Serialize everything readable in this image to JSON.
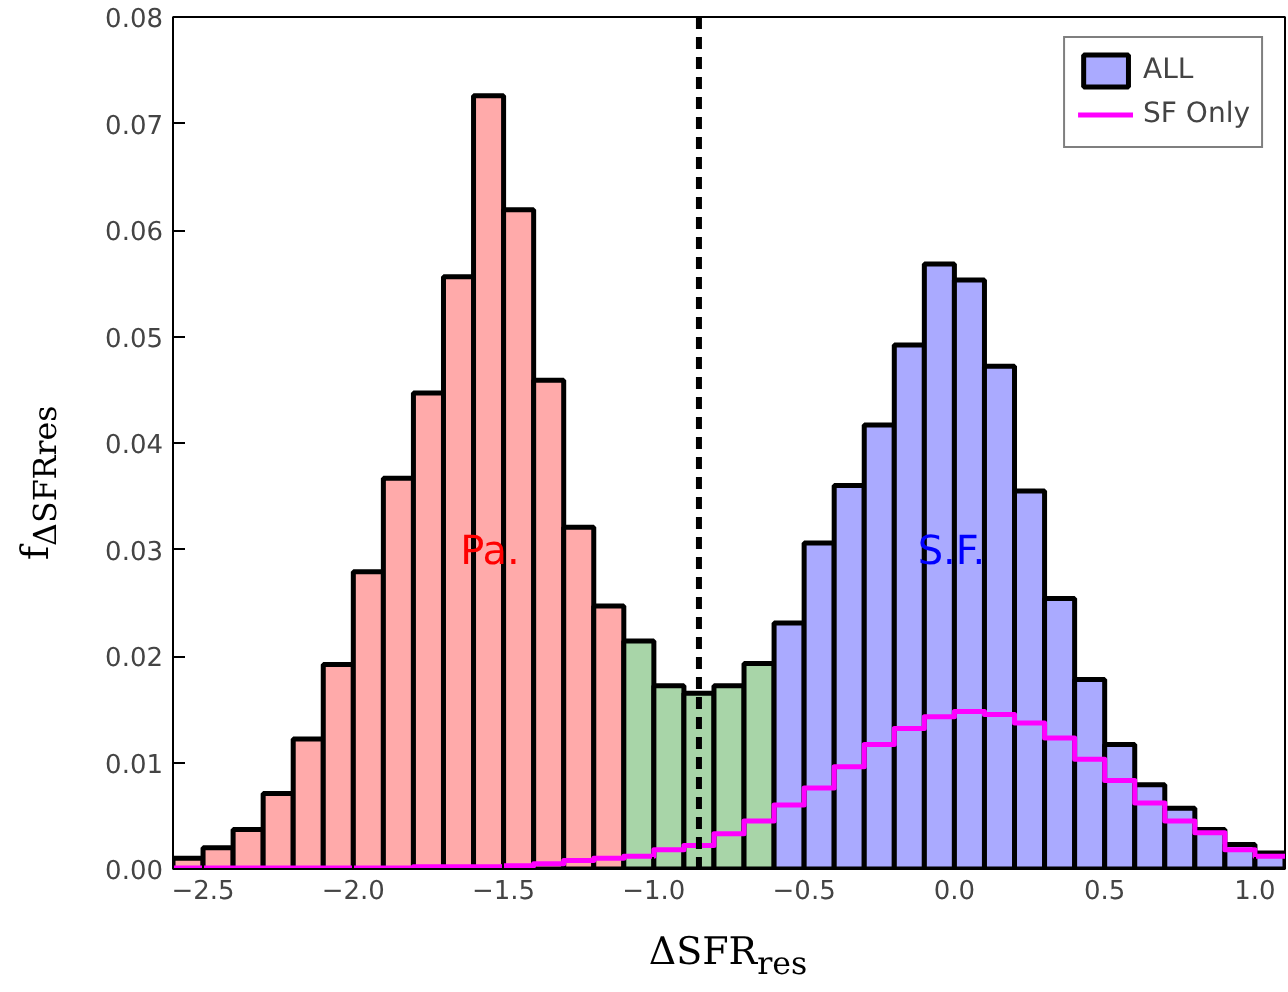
{
  "chart_data": {
    "type": "histogram",
    "xlabel": "ΔSFR$_{res}$",
    "ylabel": "f$_{ΔSFRres}$",
    "bins": [
      -2.6,
      -2.5,
      -2.4,
      -2.3,
      -2.2,
      -2.1,
      -2.0,
      -1.9,
      -1.8,
      -1.7,
      -1.6,
      -1.5,
      -1.4,
      -1.3,
      -1.2,
      -1.1,
      -1.0,
      -0.9,
      -0.8,
      -0.7,
      -0.6,
      -0.5,
      -0.4,
      -0.3,
      -0.2,
      -0.1,
      0.0,
      0.1,
      0.2,
      0.3,
      0.4,
      0.5,
      0.6,
      0.7,
      0.8,
      0.9,
      1.0,
      1.1
    ],
    "series": [
      {
        "name": "ALL",
        "color": "#000000",
        "values": [
          0.001,
          0.002,
          0.0037,
          0.0071,
          0.0122,
          0.0192,
          0.0279,
          0.0367,
          0.0447,
          0.0556,
          0.0726,
          0.0619,
          0.0459,
          0.0321,
          0.0247,
          0.0214,
          0.0172,
          0.0165,
          0.0172,
          0.0193,
          0.0231,
          0.0306,
          0.036,
          0.0417,
          0.0492,
          0.0568,
          0.0553,
          0.0472,
          0.0355,
          0.0254,
          0.0178,
          0.0117,
          0.0079,
          0.0057,
          0.0037,
          0.0023,
          0.0015
        ],
        "colors": [
          "#ffaaaa",
          "#ffaaaa",
          "#ffaaaa",
          "#ffaaaa",
          "#ffaaaa",
          "#ffaaaa",
          "#ffaaaa",
          "#ffaaaa",
          "#ffaaaa",
          "#ffaaaa",
          "#ffaaaa",
          "#ffaaaa",
          "#ffaaaa",
          "#ffaaaa",
          "#ffaaaa",
          "#a8d5a8",
          "#a8d5a8",
          "#a8d5a8",
          "#a8d5a8",
          "#a8d5a8",
          "#aaaaff",
          "#aaaaff",
          "#aaaaff",
          "#aaaaff",
          "#aaaaff",
          "#aaaaff",
          "#aaaaff",
          "#aaaaff",
          "#aaaaff",
          "#aaaaff",
          "#aaaaff",
          "#aaaaff",
          "#aaaaff",
          "#aaaaff",
          "#aaaaff",
          "#aaaaff",
          "#aaaaff"
        ]
      },
      {
        "name": "SF Only",
        "color": "#ff00ff",
        "values": [
          0.0001,
          0.0001,
          0.0001,
          0.0001,
          0.0001,
          0.0001,
          0.0001,
          0.0001,
          0.0002,
          0.0002,
          0.0002,
          0.0003,
          0.0005,
          0.0008,
          0.001,
          0.0012,
          0.0018,
          0.0022,
          0.0033,
          0.0045,
          0.006,
          0.0076,
          0.0096,
          0.0117,
          0.0132,
          0.0143,
          0.0148,
          0.0145,
          0.0137,
          0.0123,
          0.0103,
          0.0083,
          0.0062,
          0.0045,
          0.0034,
          0.0018,
          0.0012
        ]
      }
    ],
    "annotations": [
      "Pa.",
      "S.F."
    ],
    "ref_lines": [
      {
        "axis": "x",
        "value": -0.85,
        "color": "#000000",
        "line_style": "dashed"
      }
    ],
    "xlim": [
      -2.6,
      1.1
    ],
    "ylim": [
      0,
      0.08
    ],
    "xticks": [
      {
        "value": -2.5,
        "label": "−2.5"
      },
      {
        "value": -2.0,
        "label": "−2.0"
      },
      {
        "value": -1.5,
        "label": "−1.5"
      },
      {
        "value": -1.0,
        "label": "−1.0"
      },
      {
        "value": -0.5,
        "label": "−0.5"
      },
      {
        "value": 0.0,
        "label": "0.0"
      },
      {
        "value": 0.5,
        "label": "0.5"
      },
      {
        "value": 1.0,
        "label": "1.0"
      }
    ],
    "yticks": [
      {
        "value": 0,
        "label": "0.00"
      },
      {
        "value": 0.01,
        "label": "0.01"
      },
      {
        "value": 0.02,
        "label": "0.02"
      },
      {
        "value": 0.03,
        "label": "0.03"
      },
      {
        "value": 0.04,
        "label": "0.04"
      },
      {
        "value": 0.05,
        "label": "0.05"
      },
      {
        "value": 0.06,
        "label": "0.06"
      },
      {
        "value": 0.07,
        "label": "0.07"
      },
      {
        "value": 0.08,
        "label": "0.08"
      }
    ],
    "grid": false,
    "legend": "top right"
  }
}
